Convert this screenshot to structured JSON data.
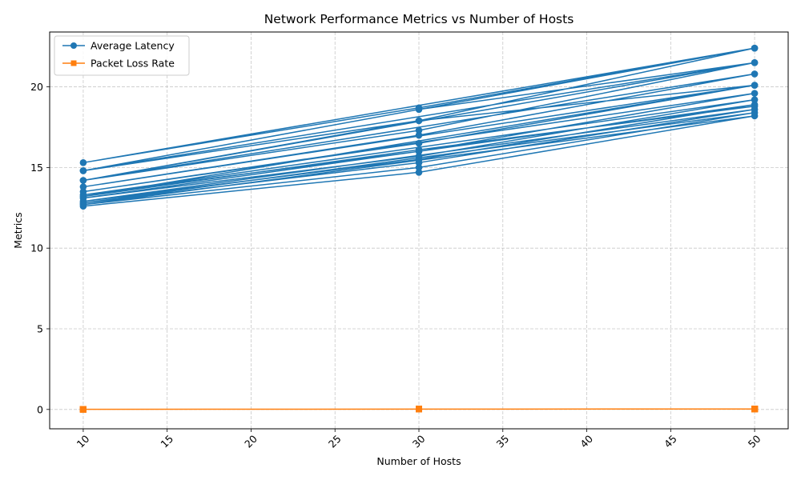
{
  "chart_data": {
    "type": "line",
    "title": "Network Performance Metrics vs Number of Hosts",
    "xlabel": "Number of Hosts",
    "ylabel": "Metrics",
    "xlim": [
      8.0,
      52.0
    ],
    "ylim": [
      -1.2,
      23.4
    ],
    "xticks": [
      10,
      15,
      20,
      25,
      30,
      35,
      40,
      45,
      50
    ],
    "yticks": [
      0,
      5,
      10,
      15,
      20
    ],
    "grid": true,
    "legend_position": "top-left",
    "colors": {
      "latency": "#1f77b4",
      "packet_loss": "#ff7f0e"
    },
    "x": [
      10,
      30,
      50,
      10,
      30,
      50,
      10,
      30,
      50,
      10,
      30,
      50,
      10,
      30,
      50,
      10,
      30,
      50,
      10,
      30,
      50,
      10,
      30,
      50,
      10,
      30,
      50,
      10,
      30,
      50,
      10,
      30,
      50,
      10,
      30,
      50,
      10,
      30,
      50,
      10,
      30,
      50
    ],
    "series": [
      {
        "name": "Average Latency",
        "marker": "circle",
        "values": [
          12.6,
          14.7,
          18.2,
          12.7,
          15.0,
          18.4,
          12.8,
          15.3,
          18.6,
          12.9,
          15.5,
          18.9,
          13.1,
          15.7,
          19.2,
          13.3,
          16.0,
          19.6,
          13.5,
          16.5,
          20.1,
          13.8,
          17.0,
          20.8,
          14.2,
          17.3,
          21.5,
          14.8,
          17.9,
          22.4,
          15.3,
          18.7,
          22.4,
          14.8,
          18.6,
          21.5,
          14.2,
          17.9,
          20.1,
          13.2,
          16.1,
          18.8
        ]
      },
      {
        "name": "Packet Loss Rate",
        "marker": "square",
        "values": [
          0.01,
          0.02,
          0.03,
          0.01,
          0.02,
          0.03,
          0.01,
          0.02,
          0.03,
          0.01,
          0.02,
          0.03,
          0.01,
          0.02,
          0.03,
          0.01,
          0.02,
          0.03,
          0.01,
          0.02,
          0.03,
          0.01,
          0.02,
          0.03,
          0.01,
          0.02,
          0.03,
          0.01,
          0.02,
          0.03,
          0.01,
          0.02,
          0.03,
          0.01,
          0.02,
          0.03,
          0.01,
          0.02,
          0.03,
          0.01,
          0.02,
          0.03
        ]
      }
    ]
  }
}
